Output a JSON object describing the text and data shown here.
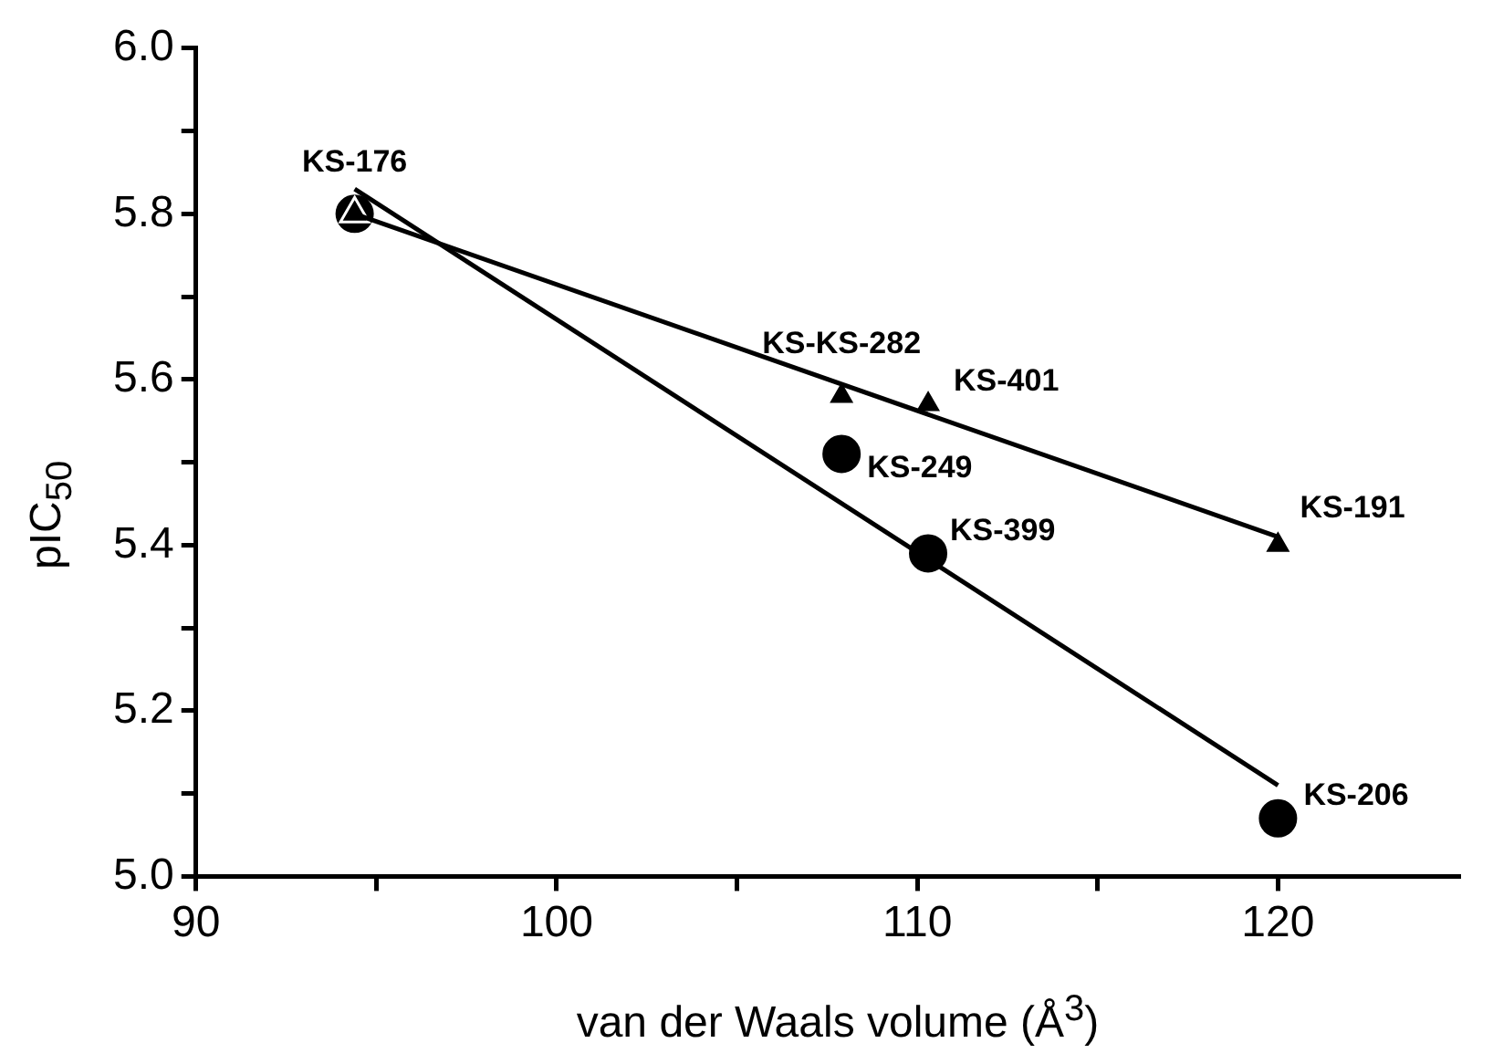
{
  "chart_data": {
    "type": "scatter",
    "xlabel": "van der Waals volume (Å$^{3}$)",
    "ylabel": "pIC$_{50}$",
    "xlim": [
      90,
      125
    ],
    "xticks": [
      90,
      {
        "value": 95,
        "label": null
      },
      100,
      {
        "value": 105,
        "label": null
      },
      110,
      {
        "value": 115,
        "label": null
      },
      120
    ],
    "ylim": [
      5.0,
      6.0
    ],
    "yticks": [
      {
        "value": 5.0,
        "label": "5.0"
      },
      {
        "value": 5.1,
        "label": null
      },
      {
        "value": 5.2,
        "label": "5.2"
      },
      {
        "value": 5.3,
        "label": null
      },
      {
        "value": 5.4,
        "label": "5.4"
      },
      {
        "value": 5.5,
        "label": null
      },
      {
        "value": 5.6,
        "label": "5.6"
      },
      {
        "value": 5.7,
        "label": null
      },
      {
        "value": 5.8,
        "label": "5.8"
      },
      {
        "value": 5.9,
        "label": null
      },
      {
        "value": 6.0,
        "label": "6.0"
      }
    ],
    "grid": false,
    "legend": false,
    "series": [
      {
        "type": "scatter",
        "marker": "circle",
        "color": "#000000",
        "x": [
          94.4,
          107.9,
          110.3,
          120.0
        ],
        "values": [
          5.8,
          5.51,
          5.39,
          5.07
        ]
      },
      {
        "type": "scatter",
        "marker": "triangle",
        "color": "#000000",
        "x": [
          94.4,
          107.9,
          110.3,
          120.0
        ],
        "values": [
          5.8,
          5.58,
          5.57,
          5.4
        ]
      },
      {
        "type": "line",
        "marker": "none",
        "color": "#000000",
        "x": [
          94.4,
          120.0
        ],
        "values": [
          5.83,
          5.11
        ]
      },
      {
        "type": "line",
        "marker": "none",
        "color": "#000000",
        "x": [
          94.4,
          120.0
        ],
        "values": [
          5.8,
          5.41
        ]
      }
    ],
    "annotations": [
      {
        "text": "KS-176",
        "x": 94.4,
        "y": 5.8
      },
      {
        "text": "KS-KS-282",
        "x": 107.9,
        "y": 5.58
      },
      {
        "text": "KS-401",
        "x": 110.3,
        "y": 5.57
      },
      {
        "text": "KS-249",
        "x": 107.9,
        "y": 5.51
      },
      {
        "text": "KS-399",
        "x": 110.3,
        "y": 5.39
      },
      {
        "text": "KS-191",
        "x": 120.0,
        "y": 5.4
      },
      {
        "text": "KS-206",
        "x": 120.0,
        "y": 5.07
      }
    ]
  }
}
